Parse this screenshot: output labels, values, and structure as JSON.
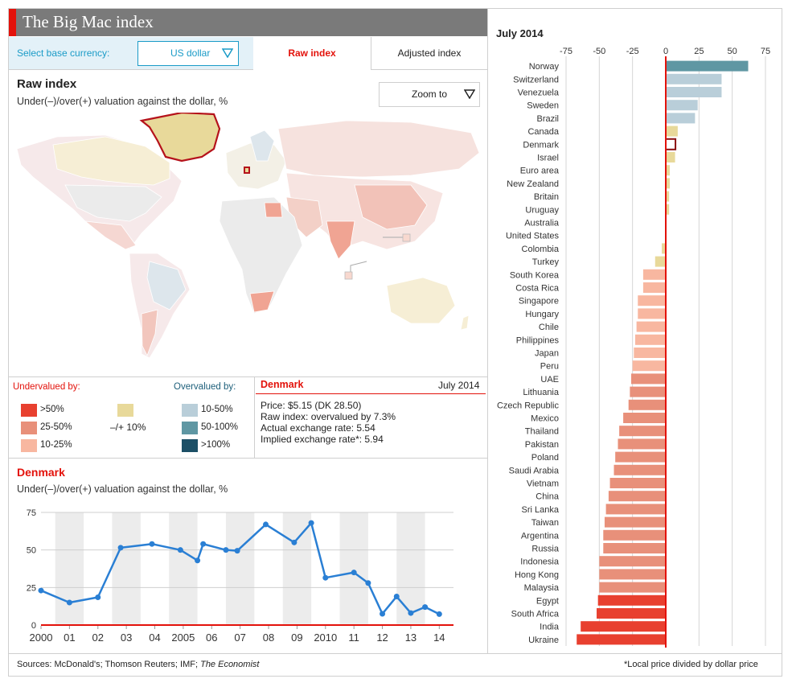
{
  "header": {
    "title": "The Big Mac index",
    "base_currency_label": "Select base currency:",
    "base_currency_value": "US dollar",
    "tabs": [
      {
        "label": "Raw index",
        "active": true
      },
      {
        "label": "Adjusted index",
        "active": false
      }
    ]
  },
  "map_panel": {
    "title": "Raw index",
    "subtitle": "Under(–)/over(+) valuation against the dollar, %",
    "zoom_label": "Zoom to",
    "selected_country": "Greenland/Denmark"
  },
  "legend": {
    "under_label": "Undervalued by:",
    "over_label": "Overvalued by:",
    "under": [
      {
        "label": ">50%",
        "color": "#e8402f"
      },
      {
        "label": "25-50%",
        "color": "#e8907a"
      },
      {
        "label": "10-25%",
        "color": "#f8b7a0"
      }
    ],
    "neutral": {
      "label": "–/+ 10%",
      "color": "#e8d99a"
    },
    "over": [
      {
        "label": "10-50%",
        "color": "#b9ced9"
      },
      {
        "label": "50-100%",
        "color": "#5f97a3"
      },
      {
        "label": ">100%",
        "color": "#1c4f66"
      }
    ]
  },
  "info": {
    "country": "Denmark",
    "date": "July 2014",
    "lines": [
      "Price: $5.15 (DK 28.50)",
      "Raw index: overvalued by 7.3%",
      "Actual exchange rate: 5.54",
      "Implied exchange rate*: 5.94"
    ]
  },
  "timeseries_panel": {
    "title": "Denmark",
    "subtitle": "Under(–)/over(+) valuation against the dollar, %"
  },
  "footer": {
    "sources_prefix": "Sources: McDonald's; Thomson Reuters; IMF; ",
    "sources_italic": "The Economist",
    "note": "*Local price divided by dollar price"
  },
  "colors": {
    "accent": "#e3120b",
    "line": "#2a7fd4",
    "highlight_bar": "#5f97a3",
    "title_bar": "#7a7a7a"
  },
  "chart_data": [
    {
      "type": "line",
      "title": "Denmark",
      "ylabel": "Under(–)/over(+) valuation against the dollar, %",
      "ylim": [
        0,
        75
      ],
      "yticks": [
        0,
        25,
        50,
        75
      ],
      "xticks": [
        "2000",
        "01",
        "02",
        "03",
        "04",
        "2005",
        "06",
        "07",
        "08",
        "09",
        "2010",
        "11",
        "12",
        "13",
        "14"
      ],
      "xlim": [
        2000,
        2014.5
      ],
      "grid": true,
      "series": [
        {
          "points": [
            [
              2000.0,
              23
            ],
            [
              2001.0,
              15
            ],
            [
              2002.0,
              18.5
            ],
            [
              2002.8,
              51.5
            ],
            [
              2003.9,
              54
            ],
            [
              2004.9,
              50
            ],
            [
              2005.5,
              43
            ],
            [
              2005.7,
              54
            ],
            [
              2006.5,
              50
            ],
            [
              2006.9,
              49.5
            ],
            [
              2007.9,
              67
            ],
            [
              2008.9,
              55
            ],
            [
              2009.5,
              68
            ],
            [
              2010.0,
              31.5
            ],
            [
              2011.0,
              35
            ],
            [
              2011.5,
              28
            ],
            [
              2012.0,
              7.5
            ],
            [
              2012.5,
              19
            ],
            [
              2013.0,
              8
            ],
            [
              2013.5,
              12
            ],
            [
              2014.0,
              7.3
            ]
          ]
        }
      ]
    },
    {
      "type": "bar",
      "orientation": "horizontal",
      "title": "July 2014",
      "xlim": [
        -75,
        75
      ],
      "xticks": [
        -75,
        -50,
        -25,
        0,
        25,
        50,
        75
      ],
      "categories": [
        "Norway",
        "Switzerland",
        "Venezuela",
        "Sweden",
        "Brazil",
        "Canada",
        "Denmark",
        "Israel",
        "Euro area",
        "New Zealand",
        "Britain",
        "Uruguay",
        "Australia",
        "United States",
        "Colombia",
        "Turkey",
        "South Korea",
        "Costa Rica",
        "Singapore",
        "Hungary",
        "Chile",
        "Philippines",
        "Japan",
        "Peru",
        "UAE",
        "Lithuania",
        "Czech Republic",
        "Mexico",
        "Thailand",
        "Pakistan",
        "Poland",
        "Saudi Arabia",
        "Vietnam",
        "China",
        "Sri Lanka",
        "Taiwan",
        "Argentina",
        "Russia",
        "Indonesia",
        "Hong Kong",
        "Malaysia",
        "Egypt",
        "South Africa",
        "India",
        "Ukraine"
      ],
      "values": [
        62,
        42,
        42,
        24,
        22,
        9,
        7.3,
        7,
        3,
        3,
        2.5,
        2.5,
        0.5,
        0,
        -3,
        -8,
        -17,
        -17,
        -21,
        -21,
        -22,
        -23,
        -24,
        -25,
        -26,
        -27,
        -28,
        -32,
        -35,
        -36,
        -38,
        -39,
        -42,
        -43,
        -45,
        -46,
        -47,
        -47,
        -50,
        -50,
        -50,
        -51,
        -52,
        -64,
        -67
      ],
      "highlight": "Denmark"
    }
  ]
}
